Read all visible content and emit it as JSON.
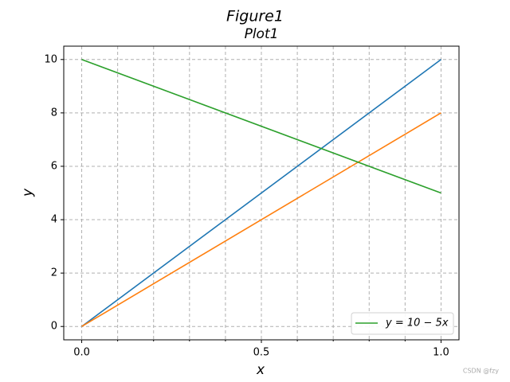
{
  "chart_data": {
    "type": "line",
    "suptitle": "Figure1",
    "title": "Plot1",
    "x_label": "x",
    "y_label": "y",
    "x": [
      0,
      1
    ],
    "series": [
      {
        "color": "#1f77b4",
        "values": [
          0,
          10
        ]
      },
      {
        "color": "#ff7f0e",
        "values": [
          0,
          8
        ]
      },
      {
        "name": "y = 10 − 5x",
        "color": "#2ca02c",
        "values": [
          10,
          5
        ]
      }
    ],
    "xlim": [
      -0.05,
      1.05
    ],
    "ylim": [
      -0.5,
      10.5
    ],
    "xticks": [
      {
        "value": 0,
        "label": "0.0"
      },
      {
        "value": 0.5,
        "label": "0.5"
      },
      {
        "value": 1,
        "label": "1.0"
      }
    ],
    "x_minor_ticks": [
      0.1,
      0.2,
      0.3,
      0.4,
      0.6,
      0.7,
      0.8,
      0.9
    ],
    "yticks": [
      0,
      2,
      4,
      6,
      8,
      10
    ],
    "grid": true,
    "legend_corner": "lower right",
    "watermark": "CSDN @fzy"
  }
}
